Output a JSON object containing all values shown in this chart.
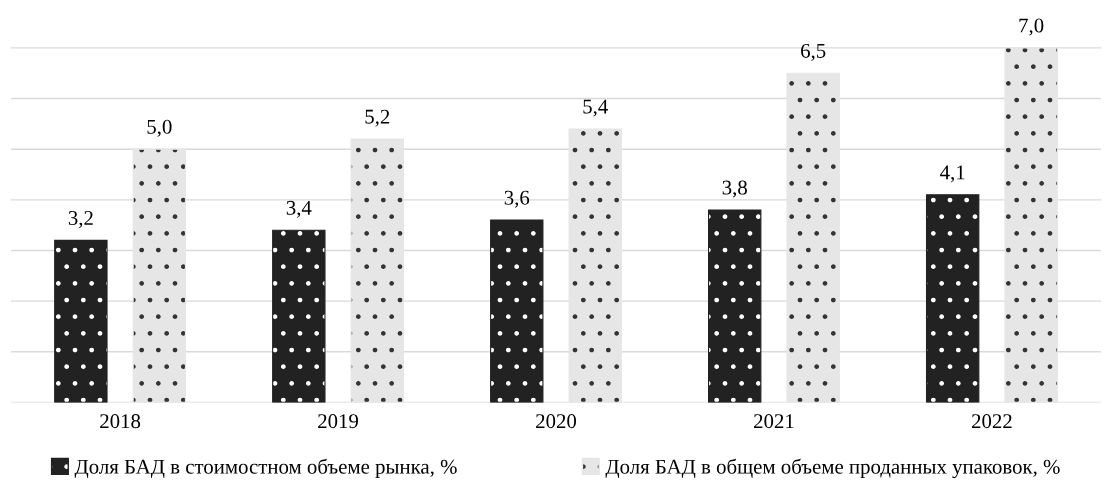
{
  "chart_data": {
    "type": "bar",
    "categories": [
      "2018",
      "2019",
      "2020",
      "2021",
      "2022"
    ],
    "series": [
      {
        "name": "Доля БАД в стоимостном объеме рынка, %",
        "color": "#222222",
        "values": [
          3.2,
          3.4,
          3.6,
          3.8,
          4.1
        ],
        "value_labels": [
          "3,2",
          "3,4",
          "3,6",
          "3,8",
          "4,1"
        ]
      },
      {
        "name": "Доля БАД в общем объеме проданных упаковок, %",
        "color": "#e6e6e6",
        "values": [
          5.0,
          5.2,
          5.4,
          6.5,
          7.0
        ],
        "value_labels": [
          "5,0",
          "5,2",
          "5,4",
          "6,5",
          "7,0"
        ]
      }
    ],
    "grid": "y",
    "tick_labels": "x",
    "legend": "bottom"
  }
}
